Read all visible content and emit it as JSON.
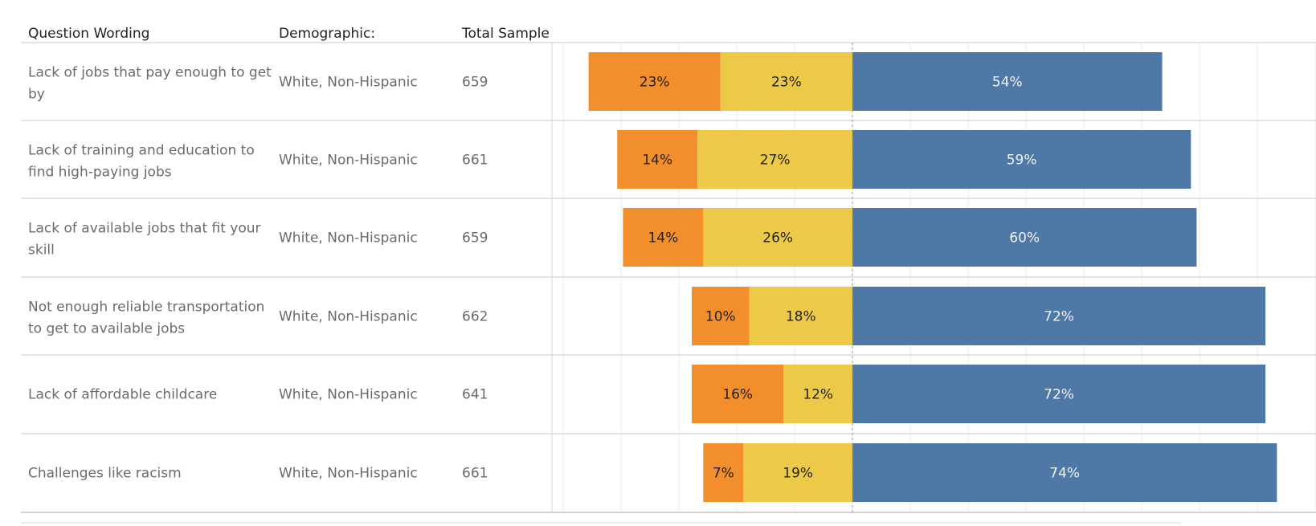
{
  "table": {
    "headers": {
      "question": "Question Wording",
      "demographic": "Demographic:",
      "sample": "Total Sample"
    }
  },
  "colors": {
    "orange": "#f28e2b",
    "yellow": "#edc948",
    "blue": "#4e79a7",
    "row_line": "#d4d4d4",
    "grid_line": "#ececec",
    "zero_line": "#9a9a9a"
  },
  "chart_data": {
    "type": "bar",
    "orientation": "horizontal",
    "stacking": "diverging",
    "xlim": [
      -50,
      80
    ],
    "grid": true,
    "categories": [
      "Lack of jobs that pay enough to get by",
      "Lack of training and education to find high-paying jobs",
      "Lack of available jobs that fit your skill",
      "Not enough reliable transportation to get to available jobs",
      "Lack of affordable childcare",
      "Challenges like racism"
    ],
    "rows": [
      {
        "question_lines": [
          "Lack of jobs that pay enough to get",
          "by"
        ],
        "demographic": "White, Non-Hispanic",
        "sample": "659",
        "orange": 23,
        "yellow": 23,
        "blue": 54,
        "orange_label": "23%",
        "yellow_label": "23%",
        "blue_label": "54%"
      },
      {
        "question_lines": [
          "Lack of training and education to",
          "find high-paying jobs"
        ],
        "demographic": "White, Non-Hispanic",
        "sample": "661",
        "orange": 14,
        "yellow": 27,
        "blue": 59,
        "orange_label": "14%",
        "yellow_label": "27%",
        "blue_label": "59%"
      },
      {
        "question_lines": [
          "Lack of available jobs that fit your",
          "skill"
        ],
        "demographic": "White, Non-Hispanic",
        "sample": "659",
        "orange": 14,
        "yellow": 26,
        "blue": 60,
        "orange_label": "14%",
        "yellow_label": "26%",
        "blue_label": "60%"
      },
      {
        "question_lines": [
          "Not enough reliable transportation",
          "to get to available jobs"
        ],
        "demographic": "White, Non-Hispanic",
        "sample": "662",
        "orange": 10,
        "yellow": 18,
        "blue": 72,
        "orange_label": "10%",
        "yellow_label": "18%",
        "blue_label": "72%"
      },
      {
        "question_lines": [
          "Lack of affordable childcare"
        ],
        "demographic": "White, Non-Hispanic",
        "sample": "641",
        "orange": 16,
        "yellow": 12,
        "blue": 72,
        "orange_label": "16%",
        "yellow_label": "12%",
        "blue_label": "72%"
      },
      {
        "question_lines": [
          "Challenges like racism"
        ],
        "demographic": "White, Non-Hispanic",
        "sample": "661",
        "orange": 7,
        "yellow": 19,
        "blue": 74,
        "orange_label": "7%",
        "yellow_label": "19%",
        "blue_label": "74%"
      }
    ]
  }
}
